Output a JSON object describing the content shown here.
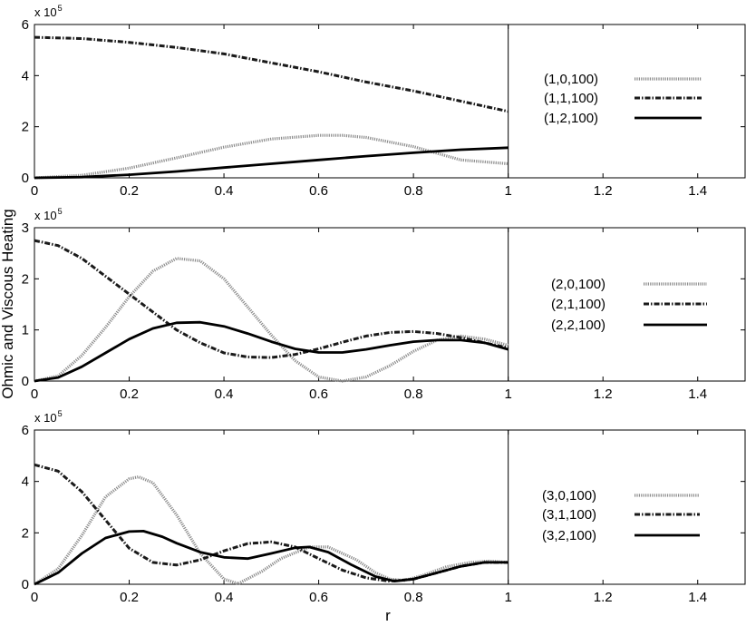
{
  "figure": {
    "ylabel": "Ohmic and Viscous Heating",
    "xlabel": "r",
    "multiplier_base": "x 10",
    "multiplier_exp": "5"
  },
  "chart_data": [
    {
      "type": "line",
      "xlim": [
        0,
        1.5
      ],
      "ylim": [
        0,
        6
      ],
      "x_ticks": [
        0,
        0.2,
        0.4,
        0.6,
        0.8,
        1,
        1.2,
        1.4
      ],
      "x_tick_labels": [
        "0",
        "0.2",
        "0.4",
        "0.6",
        "0.8",
        "1",
        "1.2",
        "1.4"
      ],
      "y_ticks": [
        0,
        2,
        4,
        6
      ],
      "y_tick_labels": [
        "0",
        "2",
        "4",
        "6"
      ],
      "y_multiplier": "x 10^5",
      "legend_placement": "right",
      "series": [
        {
          "name": "(1,0,100)",
          "style": "light-dotted",
          "color": "#8c8c8c",
          "x": [
            0,
            0.1,
            0.2,
            0.3,
            0.4,
            0.5,
            0.6,
            0.65,
            0.7,
            0.8,
            0.9,
            1.0
          ],
          "y": [
            0,
            0.1,
            0.38,
            0.78,
            1.2,
            1.52,
            1.66,
            1.66,
            1.58,
            1.22,
            0.7,
            0.55
          ]
        },
        {
          "name": "(1,1,100)",
          "style": "dash-dot",
          "color": "#1a1a1a",
          "x": [
            0,
            0.1,
            0.2,
            0.3,
            0.4,
            0.5,
            0.6,
            0.7,
            0.8,
            0.9,
            1.0
          ],
          "y": [
            5.5,
            5.45,
            5.3,
            5.1,
            4.85,
            4.5,
            4.15,
            3.75,
            3.4,
            3.0,
            2.6
          ]
        },
        {
          "name": "(1,2,100)",
          "style": "solid",
          "color": "#000000",
          "x": [
            0,
            0.1,
            0.2,
            0.3,
            0.4,
            0.5,
            0.6,
            0.7,
            0.8,
            0.9,
            1.0
          ],
          "y": [
            0,
            0.03,
            0.12,
            0.25,
            0.4,
            0.55,
            0.7,
            0.85,
            0.98,
            1.1,
            1.18
          ]
        }
      ]
    },
    {
      "type": "line",
      "xlim": [
        0,
        1.5
      ],
      "ylim": [
        0,
        3
      ],
      "x_ticks": [
        0,
        0.2,
        0.4,
        0.6,
        0.8,
        1,
        1.2,
        1.4
      ],
      "x_tick_labels": [
        "0",
        "0.2",
        "0.4",
        "0.6",
        "0.8",
        "1",
        "1.2",
        "1.4"
      ],
      "y_ticks": [
        0,
        1,
        2,
        3
      ],
      "y_tick_labels": [
        "0",
        "1",
        "2",
        "3"
      ],
      "y_multiplier": "x 10^5",
      "legend_placement": "right",
      "series": [
        {
          "name": "(2,0,100)",
          "style": "light-dotted",
          "color": "#8c8c8c",
          "x": [
            0,
            0.05,
            0.1,
            0.15,
            0.2,
            0.25,
            0.3,
            0.35,
            0.4,
            0.45,
            0.5,
            0.55,
            0.6,
            0.65,
            0.7,
            0.75,
            0.8,
            0.85,
            0.9,
            0.95,
            1.0
          ],
          "y": [
            0,
            0.1,
            0.5,
            1.05,
            1.65,
            2.15,
            2.4,
            2.35,
            2.0,
            1.45,
            0.9,
            0.4,
            0.08,
            0.0,
            0.08,
            0.3,
            0.58,
            0.8,
            0.88,
            0.82,
            0.7
          ]
        },
        {
          "name": "(2,1,100)",
          "style": "dash-dot",
          "color": "#1a1a1a",
          "x": [
            0,
            0.05,
            0.1,
            0.15,
            0.2,
            0.25,
            0.3,
            0.35,
            0.4,
            0.45,
            0.5,
            0.55,
            0.6,
            0.65,
            0.7,
            0.75,
            0.8,
            0.85,
            0.9,
            0.95,
            1.0
          ],
          "y": [
            2.75,
            2.65,
            2.4,
            2.05,
            1.7,
            1.35,
            1.0,
            0.75,
            0.55,
            0.47,
            0.46,
            0.52,
            0.63,
            0.76,
            0.88,
            0.95,
            0.97,
            0.93,
            0.85,
            0.75,
            0.65
          ]
        },
        {
          "name": "(2,2,100)",
          "style": "solid",
          "color": "#000000",
          "x": [
            0,
            0.05,
            0.1,
            0.15,
            0.2,
            0.25,
            0.3,
            0.35,
            0.4,
            0.45,
            0.5,
            0.55,
            0.6,
            0.65,
            0.7,
            0.75,
            0.8,
            0.85,
            0.9,
            0.95,
            1.0
          ],
          "y": [
            0,
            0.07,
            0.28,
            0.55,
            0.82,
            1.03,
            1.14,
            1.15,
            1.07,
            0.93,
            0.77,
            0.63,
            0.56,
            0.56,
            0.62,
            0.7,
            0.77,
            0.8,
            0.8,
            0.75,
            0.62
          ]
        }
      ]
    },
    {
      "type": "line",
      "xlim": [
        0,
        1.5
      ],
      "ylim": [
        0,
        6
      ],
      "x_ticks": [
        0,
        0.2,
        0.4,
        0.6,
        0.8,
        1,
        1.2,
        1.4
      ],
      "x_tick_labels": [
        "0",
        "0.2",
        "0.4",
        "0.6",
        "0.8",
        "1",
        "1.2",
        "1.4"
      ],
      "y_ticks": [
        0,
        2,
        4,
        6
      ],
      "y_tick_labels": [
        "0",
        "2",
        "4",
        "6"
      ],
      "y_multiplier": "x 10^5",
      "legend_placement": "right",
      "series": [
        {
          "name": "(3,0,100)",
          "style": "light-dotted",
          "color": "#8c8c8c",
          "x": [
            0,
            0.05,
            0.1,
            0.15,
            0.2,
            0.22,
            0.25,
            0.3,
            0.35,
            0.4,
            0.43,
            0.48,
            0.52,
            0.58,
            0.62,
            0.68,
            0.72,
            0.75,
            0.78,
            0.82,
            0.87,
            0.92,
            0.96,
            1.0
          ],
          "y": [
            0,
            0.6,
            1.9,
            3.4,
            4.1,
            4.18,
            3.95,
            2.7,
            1.2,
            0.2,
            0.02,
            0.5,
            1.0,
            1.45,
            1.45,
            0.95,
            0.45,
            0.2,
            0.15,
            0.35,
            0.68,
            0.85,
            0.9,
            0.85
          ]
        },
        {
          "name": "(3,1,100)",
          "style": "dash-dot",
          "color": "#1a1a1a",
          "x": [
            0,
            0.05,
            0.1,
            0.15,
            0.2,
            0.25,
            0.3,
            0.35,
            0.4,
            0.45,
            0.5,
            0.55,
            0.6,
            0.65,
            0.7,
            0.75,
            0.8,
            0.85,
            0.9,
            0.95,
            1.0
          ],
          "y": [
            4.65,
            4.4,
            3.6,
            2.5,
            1.4,
            0.85,
            0.75,
            0.95,
            1.3,
            1.58,
            1.65,
            1.45,
            1.0,
            0.55,
            0.25,
            0.12,
            0.2,
            0.45,
            0.7,
            0.85,
            0.85
          ]
        },
        {
          "name": "(3,2,100)",
          "style": "solid",
          "color": "#000000",
          "x": [
            0,
            0.05,
            0.1,
            0.15,
            0.2,
            0.23,
            0.27,
            0.3,
            0.35,
            0.4,
            0.45,
            0.5,
            0.55,
            0.58,
            0.62,
            0.67,
            0.72,
            0.76,
            0.8,
            0.85,
            0.9,
            0.95,
            1.0
          ],
          "y": [
            0,
            0.45,
            1.2,
            1.8,
            2.05,
            2.07,
            1.85,
            1.6,
            1.25,
            1.05,
            1.0,
            1.2,
            1.42,
            1.45,
            1.25,
            0.75,
            0.3,
            0.12,
            0.2,
            0.45,
            0.7,
            0.85,
            0.85
          ]
        }
      ]
    }
  ]
}
